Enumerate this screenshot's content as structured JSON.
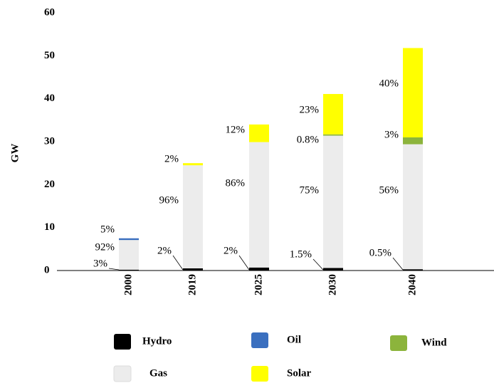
{
  "chart_data": {
    "type": "stacked_bar",
    "y_label": "GW",
    "categories": [
      "2000",
      "2019",
      "2025",
      "2030",
      "2040"
    ],
    "ylim": [
      0,
      60
    ],
    "yticks": [
      0,
      10,
      20,
      30,
      40,
      50,
      60
    ],
    "series": [
      {
        "name": "Hydro",
        "color": "#000000",
        "values": [
          0.2,
          0.5,
          0.7,
          0.6,
          0.3
        ],
        "share_labels": [
          "3%",
          "2%",
          "2%",
          "1.5%",
          "0.5%"
        ]
      },
      {
        "name": "Gas",
        "color": "#ececec",
        "values": [
          6.9,
          24,
          29.2,
          30.8,
          29.1
        ],
        "share_labels": [
          "92%",
          "96%",
          "86%",
          "75%",
          "56%"
        ]
      },
      {
        "name": "Oil",
        "color": "#3a6fbf",
        "values": [
          0.4,
          null,
          null,
          null,
          null
        ],
        "share_labels": [
          "5%",
          null,
          null,
          null,
          null
        ]
      },
      {
        "name": "Wind",
        "color": "#8cb43c",
        "values": [
          null,
          null,
          null,
          0.3,
          1.6
        ],
        "share_labels": [
          null,
          null,
          null,
          "0.8%",
          "3%"
        ]
      },
      {
        "name": "Solar",
        "color": "#ffff00",
        "values": [
          null,
          0.5,
          4.1,
          9.4,
          20.8
        ],
        "share_labels": [
          null,
          "2%",
          "12%",
          "23%",
          "40%"
        ]
      }
    ]
  }
}
